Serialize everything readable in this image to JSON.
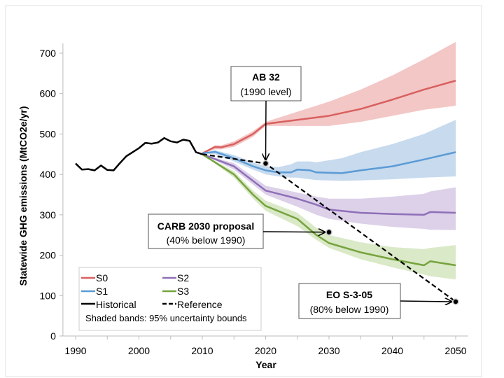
{
  "chart_data": {
    "type": "line",
    "title": "",
    "xlabel": "Year",
    "ylabel": "Statewide GHG emissions (MtCO2e/yr)",
    "xlim": [
      1988,
      2052
    ],
    "ylim": [
      0,
      700
    ],
    "xticks": [
      1990,
      2000,
      2010,
      2020,
      2030,
      2040,
      2050
    ],
    "yticks": [
      0,
      100,
      200,
      300,
      400,
      500,
      600,
      700
    ],
    "grid": false,
    "legend": {
      "placement": "bottom-left",
      "note": "Shaded bands: 95% uncertainty bounds"
    },
    "series": [
      {
        "name": "Historical",
        "color": "#000000",
        "style": "solid",
        "x": [
          1990,
          1991,
          1992,
          1993,
          1994,
          1995,
          1996,
          1997,
          1998,
          1999,
          2000,
          2001,
          2002,
          2003,
          2004,
          2005,
          2006,
          2007,
          2008,
          2009,
          2010
        ],
        "y": [
          427,
          412,
          413,
          410,
          422,
          411,
          410,
          428,
          445,
          455,
          465,
          478,
          476,
          479,
          490,
          482,
          479,
          486,
          483,
          455,
          450
        ]
      },
      {
        "name": "S0",
        "color": "#d9605f",
        "band_color": "#efb9b8",
        "style": "solid",
        "x": [
          2010,
          2012,
          2013,
          2015,
          2018,
          2020,
          2025,
          2030,
          2035,
          2040,
          2045,
          2050
        ],
        "y": [
          452,
          468,
          467,
          475,
          500,
          525,
          535,
          545,
          562,
          585,
          610,
          632
        ],
        "lower": [
          452,
          462,
          462,
          468,
          493,
          520,
          520,
          520,
          530,
          545,
          560,
          570
        ],
        "upper": [
          452,
          472,
          472,
          482,
          507,
          530,
          555,
          580,
          610,
          645,
          685,
          728
        ]
      },
      {
        "name": "S1",
        "color": "#5b9bd5",
        "band_color": "#b9d1ea",
        "style": "solid",
        "x": [
          2010,
          2012,
          2015,
          2018,
          2020,
          2022,
          2024,
          2025,
          2027,
          2028,
          2032,
          2035,
          2040,
          2045,
          2050
        ],
        "y": [
          452,
          456,
          440,
          420,
          410,
          405,
          405,
          412,
          410,
          405,
          403,
          410,
          420,
          437,
          455
        ],
        "lower": [
          452,
          450,
          432,
          412,
          400,
          395,
          392,
          392,
          388,
          386,
          384,
          385,
          388,
          392,
          395
        ],
        "upper": [
          452,
          460,
          448,
          430,
          420,
          418,
          425,
          432,
          432,
          430,
          440,
          455,
          475,
          500,
          535
        ]
      },
      {
        "name": "S2",
        "color": "#8e6fb8",
        "band_color": "#d4c6e4",
        "style": "solid",
        "x": [
          2010,
          2015,
          2020,
          2025,
          2028,
          2030,
          2035,
          2040,
          2045,
          2046,
          2050
        ],
        "y": [
          450,
          420,
          360,
          340,
          325,
          313,
          305,
          302,
          300,
          307,
          305
        ],
        "lower": [
          450,
          412,
          350,
          320,
          300,
          290,
          278,
          270,
          265,
          263,
          262
        ],
        "upper": [
          450,
          428,
          372,
          355,
          345,
          340,
          340,
          345,
          352,
          358,
          368
        ]
      },
      {
        "name": "S3",
        "color": "#76a33e",
        "band_color": "#d1e3b9",
        "style": "solid",
        "x": [
          2010,
          2015,
          2018,
          2020,
          2025,
          2028,
          2030,
          2035,
          2040,
          2045,
          2046,
          2050
        ],
        "y": [
          450,
          400,
          350,
          322,
          290,
          250,
          230,
          207,
          190,
          175,
          185,
          175
        ],
        "lower": [
          450,
          392,
          340,
          310,
          272,
          238,
          218,
          190,
          170,
          152,
          148,
          140
        ],
        "upper": [
          450,
          408,
          360,
          335,
          305,
          268,
          250,
          232,
          220,
          215,
          218,
          225
        ]
      },
      {
        "name": "Reference",
        "color": "#000000",
        "style": "dashed",
        "x": [
          2010,
          2020,
          2050
        ],
        "y": [
          450,
          427,
          85
        ]
      }
    ],
    "annotations": [
      {
        "title": "AB 32",
        "subtitle": "(1990 level)",
        "target_x": 2020,
        "target_y": 427
      },
      {
        "title": "CARB 2030 proposal",
        "subtitle": "(40% below 1990)",
        "target_x": 2030,
        "target_y": 257
      },
      {
        "title": "EO S-3-05",
        "subtitle": "(80% below 1990)",
        "target_x": 2050,
        "target_y": 85
      }
    ]
  }
}
